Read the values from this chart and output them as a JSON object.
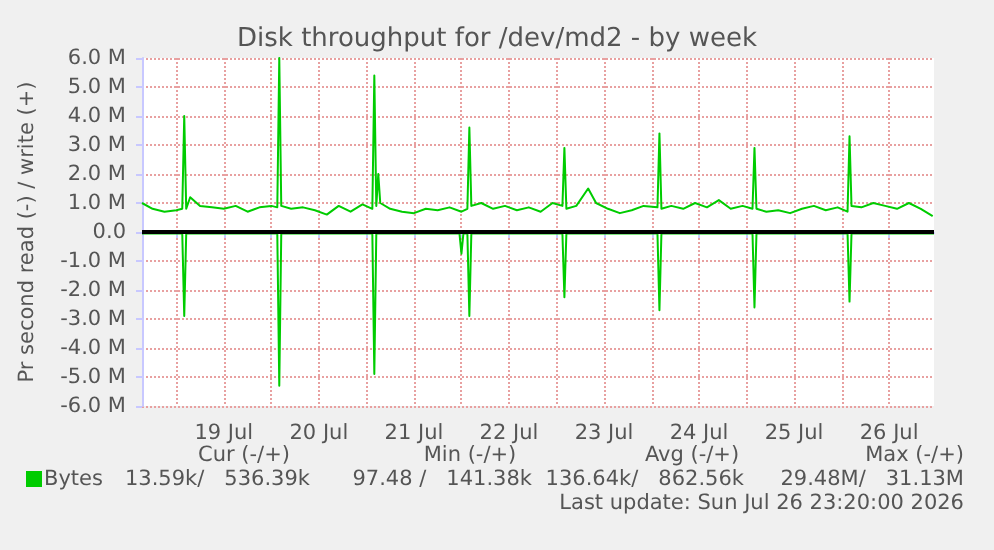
{
  "chart_data": {
    "type": "line",
    "title": "Disk throughput for /dev/md2 - by week",
    "ylabel": "Pr second read (-) / write (+)",
    "xlim": [
      "2026-07-18T15:20",
      "2026-07-26T23:20"
    ],
    "xticks": [
      {
        "value": "2026-07-19T00:00",
        "label": null
      },
      {
        "value": "2026-07-19T12:00",
        "label": "19 Jul"
      },
      {
        "value": "2026-07-20T00:00",
        "label": null
      },
      {
        "value": "2026-07-20T12:00",
        "label": "20 Jul"
      },
      {
        "value": "2026-07-21T00:00",
        "label": null
      },
      {
        "value": "2026-07-21T12:00",
        "label": "21 Jul"
      },
      {
        "value": "2026-07-22T00:00",
        "label": null
      },
      {
        "value": "2026-07-22T12:00",
        "label": "22 Jul"
      },
      {
        "value": "2026-07-23T00:00",
        "label": null
      },
      {
        "value": "2026-07-23T12:00",
        "label": "23 Jul"
      },
      {
        "value": "2026-07-24T00:00",
        "label": null
      },
      {
        "value": "2026-07-24T12:00",
        "label": "24 Jul"
      },
      {
        "value": "2026-07-25T00:00",
        "label": null
      },
      {
        "value": "2026-07-25T12:00",
        "label": "25 Jul"
      },
      {
        "value": "2026-07-26T00:00",
        "label": null
      },
      {
        "value": "2026-07-26T12:00",
        "label": "26 Jul"
      }
    ],
    "ylim": [
      -6000000,
      6000000
    ],
    "yticks": [
      {
        "value": -6000000,
        "label": "-6.0 M"
      },
      {
        "value": -5000000,
        "label": "-5.0 M"
      },
      {
        "value": -4000000,
        "label": "-4.0 M"
      },
      {
        "value": -3000000,
        "label": "-3.0 M"
      },
      {
        "value": -2000000,
        "label": "-2.0 M"
      },
      {
        "value": -1000000,
        "label": "-1.0 M"
      },
      {
        "value": 0,
        "label": "0.0"
      },
      {
        "value": 1000000,
        "label": "1.0 M"
      },
      {
        "value": 2000000,
        "label": "2.0 M"
      },
      {
        "value": 3000000,
        "label": "3.0 M"
      },
      {
        "value": 4000000,
        "label": "4.0 M"
      },
      {
        "value": 5000000,
        "label": "5.0 M"
      },
      {
        "value": 6000000,
        "label": "6.0 M"
      }
    ],
    "grid": true,
    "legend": "bottom left",
    "ref_lines": [
      {
        "axis": "y",
        "value": 0,
        "color": "#000000"
      }
    ],
    "annotations": [
      "Cur (-/+)",
      "Min (-/+)",
      "Avg (-/+)",
      "Max (-/+)",
      "13.59k/   536.39k",
      "97.48 /   141.38k",
      "136.64k/   862.56k",
      "29.48M/   31.13M",
      "Last update: Sun Jul 26 23:20:00 2026"
    ],
    "series": [
      {
        "name": "Bytes",
        "color": "#00cc00",
        "x": [
          "2026-07-18T15:20",
          "2026-07-18T18:00",
          "2026-07-18T21:00",
          "2026-07-19T00:00",
          "2026-07-19T01:30",
          "2026-07-19T02:00",
          "2026-07-19T02:30",
          "2026-07-19T03:30",
          "2026-07-19T06:00",
          "2026-07-19T09:00",
          "2026-07-19T12:00",
          "2026-07-19T15:00",
          "2026-07-19T18:00",
          "2026-07-19T21:00",
          "2026-07-20T00:00",
          "2026-07-20T01:30",
          "2026-07-20T02:00",
          "2026-07-20T02:30",
          "2026-07-20T05:00",
          "2026-07-20T08:00",
          "2026-07-20T11:00",
          "2026-07-20T14:00",
          "2026-07-20T17:00",
          "2026-07-20T20:00",
          "2026-07-20T23:00",
          "2026-07-21T01:30",
          "2026-07-21T02:00",
          "2026-07-21T02:30",
          "2026-07-21T03:00",
          "2026-07-21T03:30",
          "2026-07-21T06:00",
          "2026-07-21T09:00",
          "2026-07-21T12:00",
          "2026-07-21T15:00",
          "2026-07-21T18:00",
          "2026-07-21T21:00",
          "2026-07-22T00:00",
          "2026-07-22T01:30",
          "2026-07-22T02:00",
          "2026-07-22T02:30",
          "2026-07-22T05:00",
          "2026-07-22T08:00",
          "2026-07-22T11:00",
          "2026-07-22T14:00",
          "2026-07-22T17:00",
          "2026-07-22T20:00",
          "2026-07-22T23:00",
          "2026-07-23T01:30",
          "2026-07-23T02:00",
          "2026-07-23T02:30",
          "2026-07-23T05:00",
          "2026-07-23T08:00",
          "2026-07-23T10:00",
          "2026-07-23T13:00",
          "2026-07-23T16:00",
          "2026-07-23T19:00",
          "2026-07-23T22:00",
          "2026-07-24T01:30",
          "2026-07-24T02:00",
          "2026-07-24T02:30",
          "2026-07-24T05:00",
          "2026-07-24T08:00",
          "2026-07-24T11:00",
          "2026-07-24T14:00",
          "2026-07-24T17:00",
          "2026-07-24T20:00",
          "2026-07-24T23:00",
          "2026-07-25T01:30",
          "2026-07-25T02:00",
          "2026-07-25T02:30",
          "2026-07-25T05:00",
          "2026-07-25T08:00",
          "2026-07-25T11:00",
          "2026-07-25T14:00",
          "2026-07-25T17:00",
          "2026-07-25T20:00",
          "2026-07-25T23:00",
          "2026-07-26T01:30",
          "2026-07-26T02:00",
          "2026-07-26T02:30",
          "2026-07-26T05:00",
          "2026-07-26T08:00",
          "2026-07-26T11:00",
          "2026-07-26T14:00",
          "2026-07-26T17:00",
          "2026-07-26T20:00",
          "2026-07-26T23:00"
        ],
        "values": [
          1000000,
          800000,
          700000,
          750000,
          800000,
          4000000,
          800000,
          1200000,
          900000,
          850000,
          800000,
          900000,
          700000,
          850000,
          900000,
          850000,
          6000000,
          900000,
          800000,
          850000,
          750000,
          600000,
          900000,
          700000,
          950000,
          800000,
          5400000,
          900000,
          2000000,
          1000000,
          800000,
          700000,
          650000,
          800000,
          750000,
          850000,
          700000,
          800000,
          3600000,
          900000,
          1000000,
          800000,
          900000,
          750000,
          850000,
          700000,
          1000000,
          900000,
          2900000,
          800000,
          900000,
          1500000,
          1000000,
          800000,
          650000,
          750000,
          900000,
          850000,
          3400000,
          800000,
          900000,
          800000,
          1000000,
          850000,
          1100000,
          800000,
          900000,
          800000,
          2900000,
          800000,
          700000,
          750000,
          650000,
          800000,
          900000,
          750000,
          850000,
          700000,
          3300000,
          900000,
          850000,
          1000000,
          900000,
          800000,
          1000000,
          800000,
          550000
        ]
      },
      {
        "color": "#00cc00",
        "x": [
          "2026-07-18T15:20",
          "2026-07-19T01:30",
          "2026-07-19T02:00",
          "2026-07-19T02:30",
          "2026-07-20T01:30",
          "2026-07-20T02:00",
          "2026-07-20T02:30",
          "2026-07-21T01:30",
          "2026-07-21T02:00",
          "2026-07-21T02:30",
          "2026-07-21T23:30",
          "2026-07-22T00:00",
          "2026-07-22T00:30",
          "2026-07-22T01:30",
          "2026-07-22T02:00",
          "2026-07-22T02:30",
          "2026-07-23T01:30",
          "2026-07-23T02:00",
          "2026-07-23T02:30",
          "2026-07-24T01:30",
          "2026-07-24T02:00",
          "2026-07-24T02:30",
          "2026-07-25T01:30",
          "2026-07-25T02:00",
          "2026-07-25T02:30",
          "2026-07-26T01:30",
          "2026-07-26T02:00",
          "2026-07-26T02:30",
          "2026-07-26T23:20"
        ],
        "values": [
          -50000,
          -50000,
          -2900000,
          -50000,
          -50000,
          -5300000,
          -50000,
          -50000,
          -4900000,
          -50000,
          -50000,
          -750000,
          -50000,
          -50000,
          -2900000,
          -50000,
          -50000,
          -2250000,
          -50000,
          -50000,
          -2700000,
          -50000,
          -50000,
          -2600000,
          -50000,
          -50000,
          -2400000,
          -50000,
          -50000
        ]
      }
    ]
  }
}
